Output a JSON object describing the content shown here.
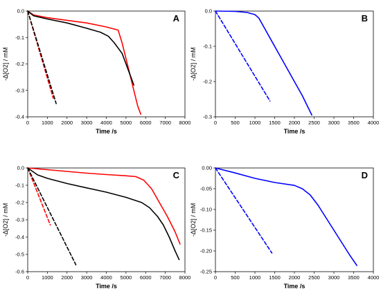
{
  "chart_data": [
    {
      "panel_label": "A",
      "type": "line",
      "xlabel": "Time /s",
      "ylabel": "-Δ[O2] / mM",
      "xlim": [
        0,
        8000
      ],
      "ylim": [
        -0.4,
        0.0
      ],
      "xticks": [
        0,
        1000,
        2000,
        3000,
        4000,
        5000,
        6000,
        7000,
        8000
      ],
      "yticks": [
        0.0,
        -0.1,
        -0.2,
        -0.3,
        -0.4
      ],
      "xtick_labels": [
        "0",
        "1000",
        "2000",
        "3000",
        "4000",
        "5000",
        "6000",
        "7000",
        "8000"
      ],
      "ytick_labels": [
        "0.0",
        "-0.1",
        "-0.2",
        "-0.3",
        "-0.4"
      ],
      "series": [
        {
          "color": "#ff0000",
          "dash": false,
          "x": [
            0,
            300,
            1000,
            2000,
            3000,
            4000,
            4600,
            4800,
            5000,
            5200,
            5400,
            5600,
            5750
          ],
          "y": [
            0,
            -0.015,
            -0.025,
            -0.035,
            -0.045,
            -0.06,
            -0.072,
            -0.12,
            -0.18,
            -0.24,
            -0.3,
            -0.36,
            -0.39
          ]
        },
        {
          "color": "#000000",
          "dash": false,
          "x": [
            0,
            300,
            1000,
            2000,
            3000,
            3700,
            4100,
            4400,
            4800,
            5000,
            5200,
            5400
          ],
          "y": [
            0,
            -0.018,
            -0.03,
            -0.045,
            -0.065,
            -0.08,
            -0.095,
            -0.12,
            -0.16,
            -0.2,
            -0.24,
            -0.28
          ]
        },
        {
          "color": "#ff0000",
          "dash": true,
          "x": [
            0,
            1300
          ],
          "y": [
            0,
            -0.33
          ]
        },
        {
          "color": "#000000",
          "dash": true,
          "x": [
            0,
            1450
          ],
          "y": [
            0,
            -0.35
          ]
        }
      ]
    },
    {
      "panel_label": "B",
      "type": "line",
      "xlabel": "Time /s",
      "ylabel": "-Δ[O2] / mM",
      "xlim": [
        0,
        4000
      ],
      "ylim": [
        -0.3,
        0.0
      ],
      "xticks": [
        0,
        500,
        1000,
        1500,
        2000,
        2500,
        3000,
        3500,
        4000
      ],
      "yticks": [
        0.0,
        -0.1,
        -0.2,
        -0.3
      ],
      "xtick_labels": [
        "0",
        "500",
        "1000",
        "1500",
        "2000",
        "2500",
        "3000",
        "3500",
        "4000"
      ],
      "ytick_labels": [
        "0.0",
        "-0.1",
        "-0.2",
        "-0.3"
      ],
      "series": [
        {
          "color": "#0000ff",
          "dash": false,
          "x": [
            0,
            500,
            800,
            1000,
            1100,
            1200,
            1400,
            1700,
            2000,
            2200,
            2440
          ],
          "y": [
            0,
            -0.001,
            -0.004,
            -0.01,
            -0.02,
            -0.04,
            -0.08,
            -0.14,
            -0.2,
            -0.24,
            -0.295
          ]
        },
        {
          "color": "#0000ff",
          "dash": true,
          "x": [
            0,
            1380
          ],
          "y": [
            0,
            -0.255
          ]
        }
      ]
    },
    {
      "panel_label": "C",
      "type": "line",
      "xlabel": "Time /s",
      "ylabel": "-Δ[O2] / mM",
      "xlim": [
        0,
        8000
      ],
      "ylim": [
        -0.6,
        0.0
      ],
      "xticks": [
        0,
        1000,
        2000,
        3000,
        4000,
        5000,
        6000,
        7000,
        8000
      ],
      "yticks": [
        0.0,
        -0.1,
        -0.2,
        -0.3,
        -0.4,
        -0.5,
        -0.6
      ],
      "xtick_labels": [
        "0",
        "1000",
        "2000",
        "3000",
        "4000",
        "5000",
        "6000",
        "7000",
        "8000"
      ],
      "ytick_labels": [
        "0.0",
        "-0.1",
        "-0.2",
        "-0.3",
        "-0.4",
        "-0.5",
        "-0.6"
      ],
      "series": [
        {
          "color": "#ff0000",
          "dash": false,
          "x": [
            0,
            1000,
            2000,
            3000,
            4000,
            5000,
            5500,
            5900,
            6300,
            6700,
            7100,
            7500,
            7750
          ],
          "y": [
            0,
            -0.01,
            -0.02,
            -0.03,
            -0.038,
            -0.045,
            -0.05,
            -0.07,
            -0.12,
            -0.2,
            -0.28,
            -0.37,
            -0.44
          ]
        },
        {
          "color": "#000000",
          "dash": false,
          "x": [
            0,
            500,
            1000,
            2000,
            3000,
            4000,
            5000,
            5800,
            6200,
            6600,
            6900,
            7200,
            7500,
            7700
          ],
          "y": [
            0,
            -0.04,
            -0.06,
            -0.09,
            -0.115,
            -0.14,
            -0.17,
            -0.2,
            -0.23,
            -0.28,
            -0.33,
            -0.4,
            -0.48,
            -0.53
          ]
        },
        {
          "color": "#ff0000",
          "dash": true,
          "x": [
            0,
            1150
          ],
          "y": [
            0,
            -0.33
          ]
        },
        {
          "color": "#000000",
          "dash": true,
          "x": [
            0,
            2450
          ],
          "y": [
            0,
            -0.56
          ]
        }
      ]
    },
    {
      "panel_label": "D",
      "type": "line",
      "xlabel": "Time /s",
      "ylabel": "-Δ[O2] / mM",
      "xlim": [
        0,
        4000
      ],
      "ylim": [
        -0.25,
        0.0
      ],
      "xticks": [
        0,
        500,
        1000,
        1500,
        2000,
        2500,
        3000,
        3500,
        4000
      ],
      "yticks": [
        0.0,
        -0.05,
        -0.1,
        -0.15,
        -0.2,
        -0.25
      ],
      "xtick_labels": [
        "0",
        "500",
        "1000",
        "1500",
        "2000",
        "2500",
        "3000",
        "3500",
        "4000"
      ],
      "ytick_labels": [
        "0.00",
        "-0.05",
        "-0.10",
        "-0.15",
        "-0.20",
        "-0.25"
      ],
      "series": [
        {
          "color": "#0000ff",
          "dash": false,
          "x": [
            0,
            500,
            1000,
            1500,
            2000,
            2200,
            2400,
            2600,
            2800,
            3000,
            3200,
            3400,
            3580
          ],
          "y": [
            0,
            -0.012,
            -0.025,
            -0.035,
            -0.042,
            -0.05,
            -0.065,
            -0.09,
            -0.12,
            -0.15,
            -0.18,
            -0.21,
            -0.235
          ]
        },
        {
          "color": "#0000ff",
          "dash": true,
          "x": [
            0,
            1430
          ],
          "y": [
            0,
            -0.205
          ]
        }
      ]
    }
  ]
}
